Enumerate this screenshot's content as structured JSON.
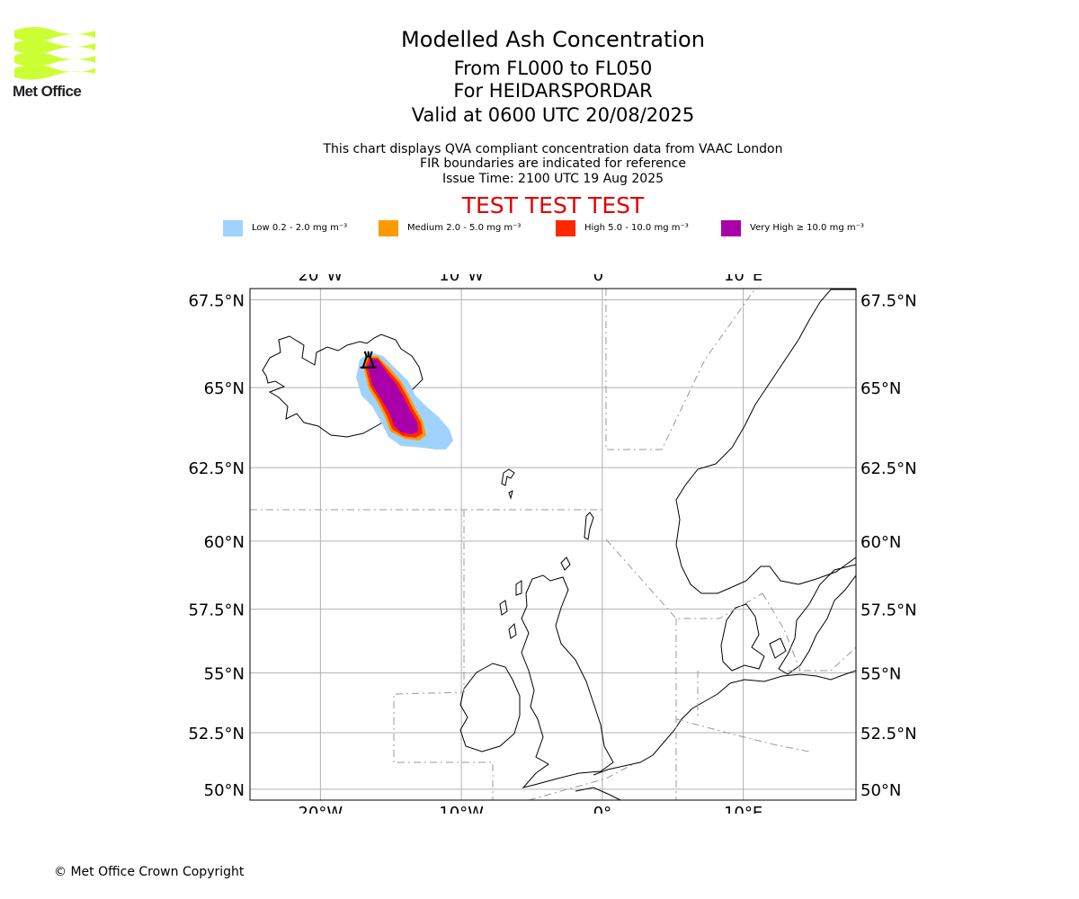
{
  "header": {
    "title": "Modelled Ash Concentration",
    "flight_levels": "From FL000 to FL050",
    "volcano": "For HEIDARSPORDAR",
    "valid_time": "Valid at 0600 UTC 20/08/2025",
    "info_line_1": "This chart displays QVA compliant concentration data from VAAC London",
    "info_line_2": "FIR boundaries are indicated for reference",
    "issue_time": "Issue Time: 2100 UTC 19 Aug 2025",
    "test_banner": "TEST TEST TEST"
  },
  "logo": {
    "text": "Met Office",
    "icon": "met-office-wave-logo",
    "color": "#ccff33"
  },
  "legend": [
    {
      "label": "Low 0.2 - 2.0 mg m⁻³",
      "color": "#a0d2ff"
    },
    {
      "label": "Medium 2.0 - 5.0 mg m⁻³",
      "color": "#ff9900"
    },
    {
      "label": "High 5.0 - 10.0 mg m⁻³",
      "color": "#ff2800"
    },
    {
      "label": "Very High ≥ 10.0 mg m⁻³",
      "color": "#aa00aa"
    }
  ],
  "map": {
    "lon_range": [
      -25,
      18
    ],
    "lat_range": [
      49.5,
      67.8
    ],
    "lon_ticks": [
      {
        "value": -20,
        "label": "20°W"
      },
      {
        "value": -10,
        "label": "10°W"
      },
      {
        "value": 0,
        "label": "0°"
      },
      {
        "value": 10,
        "label": "10°E"
      }
    ],
    "lat_ticks": [
      {
        "value": 67.5,
        "label": "67.5°N"
      },
      {
        "value": 65,
        "label": "65°N"
      },
      {
        "value": 62.5,
        "label": "62.5°N"
      },
      {
        "value": 60,
        "label": "60°N"
      },
      {
        "value": 57.5,
        "label": "57.5°N"
      },
      {
        "value": 55,
        "label": "55°N"
      },
      {
        "value": 52.5,
        "label": "52.5°N"
      },
      {
        "value": 50,
        "label": "50°N"
      }
    ],
    "volcano_marker": {
      "lon": -16.6,
      "lat": 65.75,
      "icon": "volcano-icon"
    },
    "grid": true
  },
  "footer": {
    "copyright": "© Met Office Crown Copyright"
  }
}
